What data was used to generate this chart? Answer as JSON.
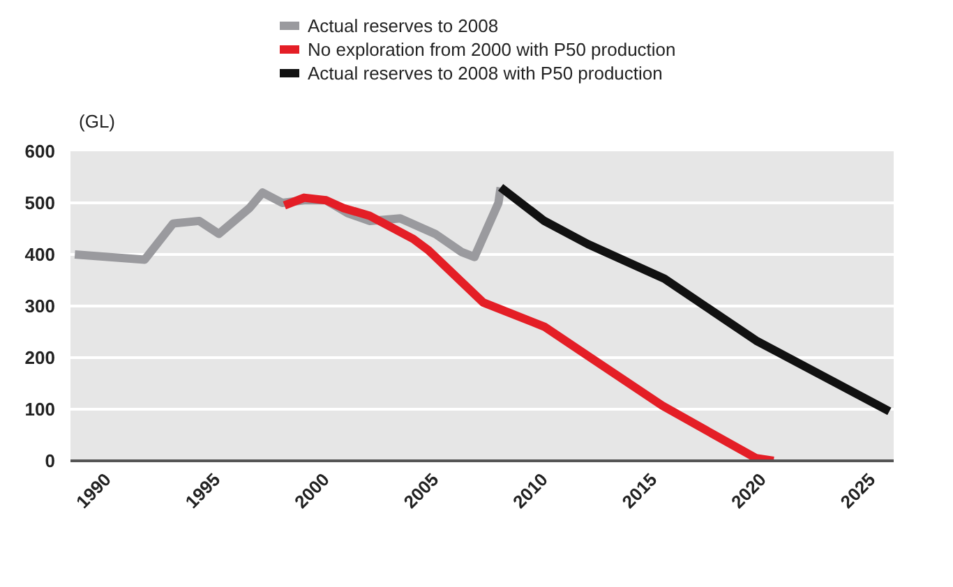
{
  "chart_data": {
    "type": "line",
    "ylabel": "(GL)",
    "xlim": [
      1988.3,
      2026
    ],
    "xticks": [
      1990,
      1995,
      2000,
      2005,
      2010,
      2015,
      2020,
      2025
    ],
    "ylim": [
      0,
      600
    ],
    "yticks": [
      0,
      100,
      200,
      300,
      400,
      500,
      600
    ],
    "grid": "y",
    "legend": "top",
    "marker": "none",
    "line_style": "solid",
    "series": [
      {
        "name": "Actual reserves to 2008",
        "color": "#9a9a9e",
        "x": [
          1988.5,
          1991.7,
          1993,
          1994.2,
          1995.1,
          1996.5,
          1997.1,
          1998,
          1999,
          2000,
          2001,
          2002,
          2003.4,
          2005,
          2006.2,
          2006.8,
          2007.9,
          2008
        ],
        "values": [
          400,
          390,
          460,
          465,
          440,
          490,
          520,
          500,
          505,
          505,
          480,
          465,
          470,
          440,
          405,
          395,
          500,
          530
        ]
      },
      {
        "name": "No exploration from 2000 with P50 production",
        "color": "#e41e26",
        "x": [
          1998.1,
          1999,
          2000,
          2000.8,
          2002,
          2004,
          2004.7,
          2007.2,
          2010,
          2015.4,
          2019.7,
          2020.5
        ],
        "values": [
          495,
          510,
          505,
          490,
          475,
          430,
          408,
          307,
          260,
          107,
          5,
          0
        ]
      },
      {
        "name": "Actual reserves to 2008 with P50 production",
        "color": "#111111",
        "x": [
          2008,
          2010,
          2012,
          2015.5,
          2019.7,
          2025.8
        ],
        "values": [
          530,
          465,
          420,
          353,
          233,
          96
        ]
      }
    ]
  }
}
